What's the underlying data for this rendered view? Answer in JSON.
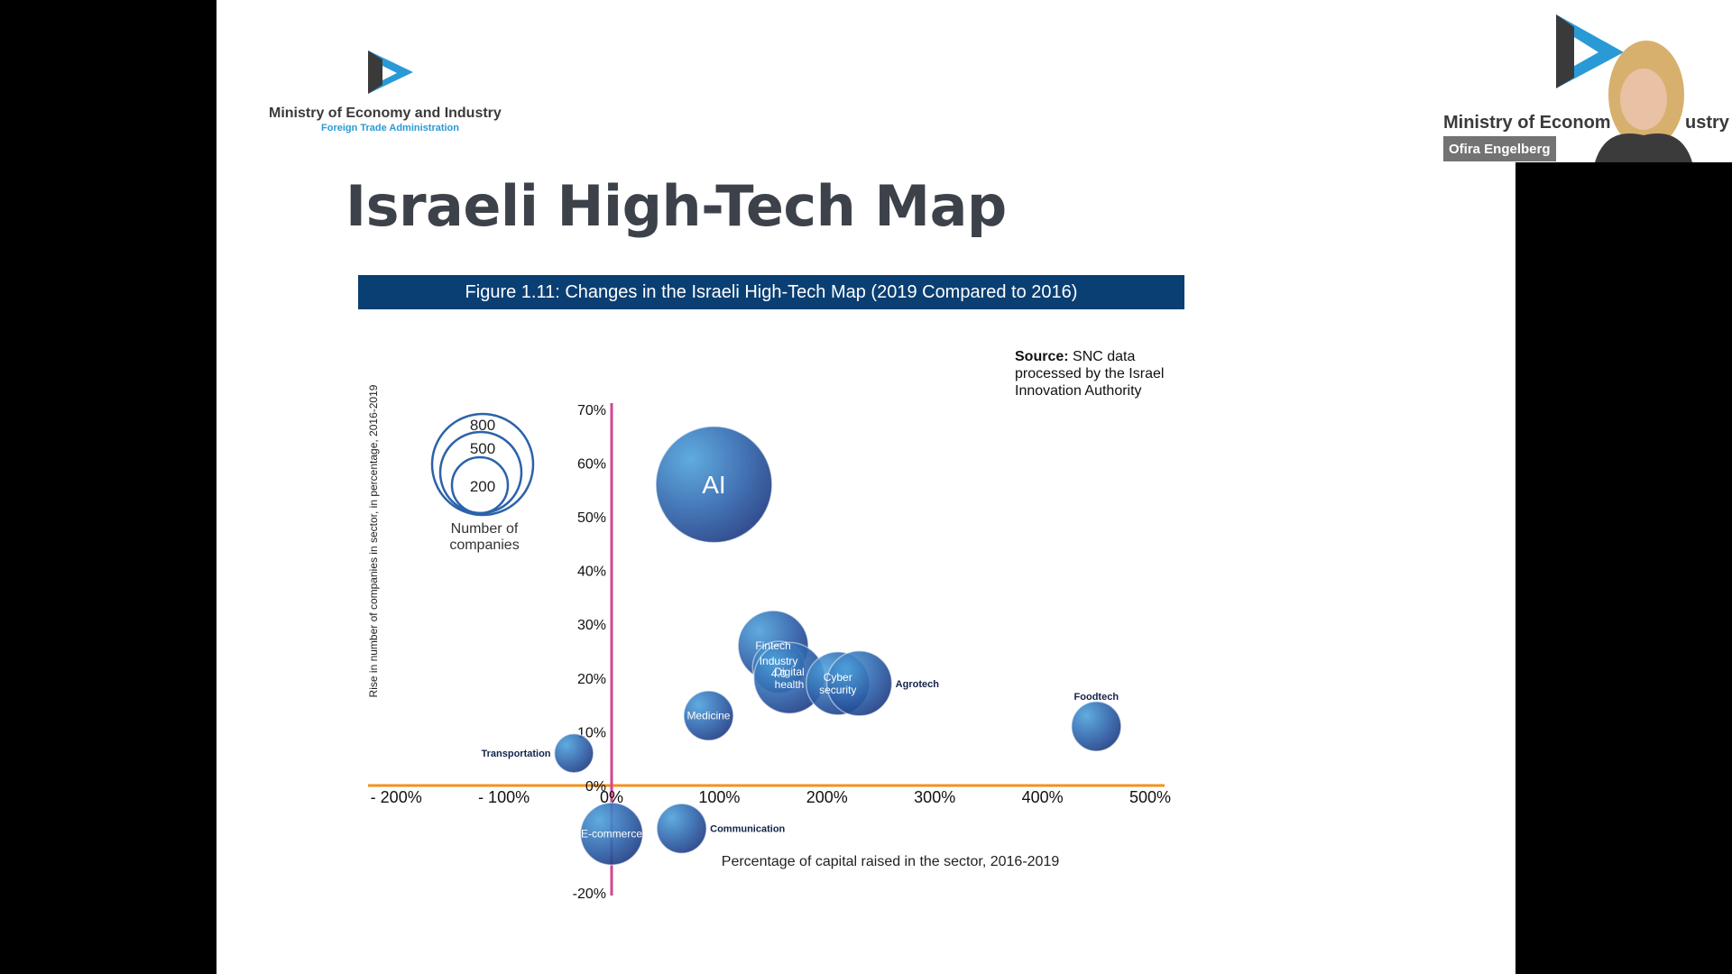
{
  "org": {
    "name": "Ministry of Economy and Industry",
    "sub": "Foreign Trade Administration"
  },
  "slide": {
    "title": "Israeli High-Tech Map",
    "figure_title": "Figure 1.11: Changes in the Israeli High-Tech Map (2019 Compared to 2016)",
    "source_label": "Source:",
    "source_text": "SNC data processed by the Israel Innovation Authority"
  },
  "legend": {
    "sizes": [
      "800",
      "500",
      "200"
    ],
    "caption_line1": "Number of",
    "caption_line2": "companies"
  },
  "chart_data": {
    "type": "bubble",
    "title": "Figure 1.11: Changes in the Israeli High-Tech Map (2019 Compared to 2016)",
    "xlabel": "Percentage of capital raised in the sector, 2016-2019",
    "ylabel": "Rise in number of companies in sector, in percentage, 2016-2019",
    "xlim": [
      -225,
      525
    ],
    "ylim": [
      -22,
      72
    ],
    "x_ticks": [
      -200,
      -100,
      0,
      100,
      200,
      300,
      400,
      500
    ],
    "x_tick_labels": [
      "- 200%",
      "- 100%",
      "0%",
      "100%",
      "200%",
      "300%",
      "400%",
      "500%"
    ],
    "y_ticks": [
      70,
      60,
      50,
      40,
      30,
      20,
      10,
      0,
      -20
    ],
    "y_tick_labels": [
      "70%",
      "60%",
      "50%",
      "40%",
      "30%",
      "20%",
      "10%",
      "0%",
      "-20%"
    ],
    "points": [
      {
        "label": "AI",
        "x": 95,
        "y": 56,
        "size": 1150
      },
      {
        "label": "Fintech",
        "x": 150,
        "y": 26,
        "size": 420
      },
      {
        "label": "Industry 4.0",
        "x": 155,
        "y": 22,
        "size": 230
      },
      {
        "label": "Digital health",
        "x": 165,
        "y": 20,
        "size": 430
      },
      {
        "label": "Cyber security",
        "x": 210,
        "y": 19,
        "size": 340
      },
      {
        "label": "Agrotech",
        "x": 230,
        "y": 19,
        "size": 360
      },
      {
        "label": "Medicine",
        "x": 90,
        "y": 13,
        "size": 210
      },
      {
        "label": "Foodtech",
        "x": 450,
        "y": 11,
        "size": 210
      },
      {
        "label": "Transportation",
        "x": -35,
        "y": 6,
        "size": 130
      },
      {
        "label": "Communication",
        "x": 65,
        "y": -8,
        "size": 210
      },
      {
        "label": "E-commerce",
        "x": 0,
        "y": -9,
        "size": 330
      }
    ]
  },
  "video": {
    "participant_name": "Ofira Engelberg"
  },
  "colors": {
    "banner": "#0a3f73",
    "x_axis": "#f4901e",
    "y_axis": "#d24590",
    "bubble_light": "#4a9ad8",
    "bubble_dark": "#1f3e8a"
  }
}
